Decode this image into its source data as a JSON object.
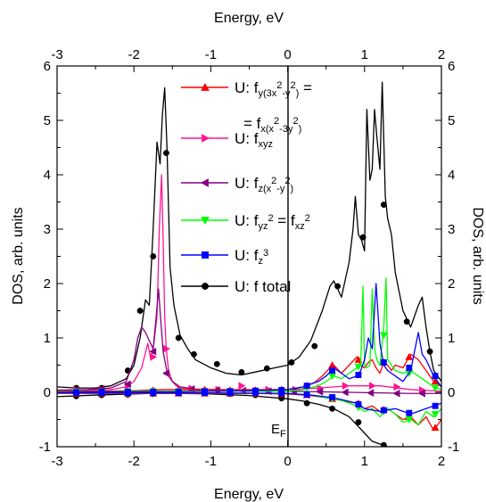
{
  "chart_data": {
    "type": "line",
    "xlabel": "Energy, eV",
    "x2label": "Energy, eV",
    "ylabel": "DOS, arb. units",
    "y2label": "DOS, arb. units",
    "xlim": [
      -3,
      2
    ],
    "ylim": [
      -1,
      6
    ],
    "xticks": [
      "-3",
      "-2",
      "-1",
      "0",
      "1",
      "2"
    ],
    "yticks": [
      "-1",
      "0",
      "1",
      "2",
      "3",
      "4",
      "5",
      "6"
    ],
    "fermi_label": "E",
    "fermi_sub": "F",
    "legend": [
      {
        "color": "#ff0000",
        "marker": "triangle-up",
        "segments": [
          {
            "t": "U: f"
          },
          {
            "t": "y(3x",
            "s": "sub"
          },
          {
            "t": "2",
            "s": "sup"
          },
          {
            "t": "-y",
            "s": "sub"
          },
          {
            "t": "2",
            "s": "sup"
          },
          {
            "t": ")",
            "s": "sub"
          },
          {
            "t": " ="
          }
        ],
        "line2": [
          {
            "t": "= f"
          },
          {
            "t": "x(x",
            "s": "sub"
          },
          {
            "t": "2",
            "s": "sup"
          },
          {
            "t": "-3y",
            "s": "sub"
          },
          {
            "t": "2",
            "s": "sup"
          },
          {
            "t": ")",
            "s": "sub"
          }
        ]
      },
      {
        "color": "#ff1493",
        "marker": "triangle-right",
        "segments": [
          {
            "t": "U: f"
          },
          {
            "t": "xyz",
            "s": "sub"
          }
        ]
      },
      {
        "color": "#800080",
        "marker": "triangle-left",
        "segments": [
          {
            "t": "U: f"
          },
          {
            "t": "z(x",
            "s": "sub"
          },
          {
            "t": "2",
            "s": "sup"
          },
          {
            "t": "-y",
            "s": "sub"
          },
          {
            "t": "2",
            "s": "sup"
          },
          {
            "t": ")",
            "s": "sub"
          }
        ]
      },
      {
        "color": "#00ff00",
        "marker": "triangle-down",
        "segments": [
          {
            "t": "U: f"
          },
          {
            "t": "yz",
            "s": "sub"
          },
          {
            "t": "2",
            "s": "sup"
          },
          {
            "t": " = f"
          },
          {
            "t": "xz",
            "s": "sub"
          },
          {
            "t": "2",
            "s": "sup"
          }
        ]
      },
      {
        "color": "#0000ff",
        "marker": "square",
        "segments": [
          {
            "t": "U: f"
          },
          {
            "t": "z",
            "s": "sub"
          },
          {
            "t": "3",
            "s": "sup"
          }
        ]
      },
      {
        "color": "#000000",
        "marker": "circle",
        "segments": [
          {
            "t": "U: f total"
          }
        ]
      }
    ],
    "series": [
      {
        "color": "#000000",
        "marker": "circle",
        "x": [
          -3.0,
          -2.75,
          -2.5,
          -2.3,
          -2.1,
          -2.0,
          -1.92,
          -1.85,
          -1.8,
          -1.75,
          -1.7,
          -1.66,
          -1.63,
          -1.6,
          -1.57,
          -1.53,
          -1.48,
          -1.4,
          -1.3,
          -1.2,
          -1.0,
          -0.8,
          -0.6,
          -0.4,
          -0.2,
          0.0,
          0.15,
          0.3,
          0.45,
          0.55,
          0.6,
          0.65,
          0.7,
          0.8,
          0.85,
          0.88,
          0.92,
          0.96,
          1.0,
          1.03,
          1.07,
          1.1,
          1.13,
          1.16,
          1.2,
          1.23,
          1.27,
          1.3,
          1.35,
          1.4,
          1.5,
          1.6,
          1.7,
          1.75,
          1.8,
          1.85,
          1.9,
          2.0
        ],
        "y": [
          0.1,
          0.08,
          0.08,
          0.12,
          0.25,
          0.5,
          1.0,
          1.7,
          1.6,
          3.0,
          4.6,
          4.2,
          5.1,
          5.6,
          4.5,
          2.3,
          1.6,
          1.05,
          0.8,
          0.6,
          0.45,
          0.35,
          0.32,
          0.38,
          0.44,
          0.5,
          0.65,
          0.95,
          1.5,
          1.95,
          2.05,
          1.9,
          1.75,
          2.4,
          3.0,
          3.6,
          2.9,
          2.8,
          2.6,
          5.2,
          3.9,
          4.1,
          5.2,
          4.7,
          4.1,
          5.7,
          3.6,
          3.2,
          2.9,
          2.2,
          1.5,
          1.2,
          1.6,
          1.75,
          1.2,
          0.75,
          0.4,
          0.2
        ],
        "mx": [
          -2.75,
          -2.42,
          -2.08,
          -1.92,
          -1.75,
          -1.58,
          -1.42,
          -1.22,
          -0.92,
          -0.6,
          -0.27,
          0.05,
          0.35,
          0.65,
          0.98,
          1.25,
          1.55,
          1.85
        ],
        "my": [
          0.08,
          0.08,
          0.4,
          1.5,
          2.5,
          4.4,
          1.0,
          0.7,
          0.52,
          0.37,
          0.44,
          0.55,
          0.85,
          1.95,
          2.85,
          3.45,
          1.3,
          0.75
        ]
      },
      {
        "color": "#000000",
        "marker": "circle",
        "x": [
          -3.0,
          -2.5,
          -2.0,
          -1.8,
          -1.6,
          -1.4,
          -1.0,
          -0.5,
          0.0,
          0.2,
          0.4,
          0.6,
          0.8,
          0.9,
          1.0,
          1.1,
          1.2,
          1.3,
          1.4,
          1.5,
          1.6,
          1.7,
          1.8,
          2.0
        ],
        "y": [
          -0.08,
          -0.05,
          -0.03,
          -0.02,
          -0.02,
          -0.02,
          -0.03,
          -0.06,
          -0.12,
          -0.16,
          -0.22,
          -0.3,
          -0.45,
          -0.6,
          -0.75,
          -0.9,
          -0.95,
          -1.0,
          -1.0,
          -1.0,
          -1.0,
          -1.0,
          -1.0,
          -1.0
        ],
        "mx": [
          -2.75,
          -2.42,
          -2.08,
          -1.75,
          -1.42,
          -1.08,
          -0.75,
          -0.42,
          -0.08,
          0.25,
          0.58,
          0.92,
          1.25
        ],
        "my": [
          -0.07,
          -0.05,
          -0.04,
          -0.03,
          -0.02,
          -0.02,
          -0.03,
          -0.05,
          -0.11,
          -0.2,
          -0.3,
          -0.55,
          -0.97
        ]
      },
      {
        "color": "#ff1493",
        "marker": "triangle-right",
        "x": [
          -3.0,
          -2.6,
          -2.3,
          -2.1,
          -2.0,
          -1.9,
          -1.82,
          -1.78,
          -1.74,
          -1.7,
          -1.67,
          -1.64,
          -1.62,
          -1.6,
          -1.58,
          -1.55,
          -1.5,
          -1.45,
          -1.4,
          -1.2,
          -0.8,
          -0.4,
          0.0,
          0.4,
          0.8,
          1.2,
          1.6,
          2.0
        ],
        "y": [
          0.03,
          0.04,
          0.05,
          0.1,
          0.2,
          0.45,
          0.9,
          0.6,
          0.9,
          1.4,
          3.0,
          4.0,
          2.8,
          1.4,
          0.8,
          0.4,
          0.2,
          0.12,
          0.08,
          0.06,
          0.05,
          0.05,
          0.05,
          0.08,
          0.12,
          0.12,
          0.05,
          0.02
        ],
        "mx": [
          -2.75,
          -2.42,
          -2.08,
          -1.75,
          -1.58,
          -1.25,
          -0.9,
          -0.6,
          -0.25,
          0.1,
          0.42,
          0.75,
          1.1,
          1.42,
          1.75
        ],
        "my": [
          0.04,
          0.04,
          0.12,
          0.65,
          0.8,
          0.07,
          0.05,
          0.12,
          0.05,
          0.05,
          0.08,
          0.12,
          0.12,
          0.1,
          0.04
        ]
      },
      {
        "color": "#800080",
        "marker": "triangle-left",
        "x": [
          -3.0,
          -2.6,
          -2.3,
          -2.1,
          -2.0,
          -1.95,
          -1.9,
          -1.85,
          -1.8,
          -1.75,
          -1.71,
          -1.68,
          -1.65,
          -1.62,
          -1.58,
          -1.55,
          -1.5,
          -1.4,
          -1.2,
          -0.8,
          -0.4,
          0.0,
          0.4,
          0.8,
          1.2,
          1.6,
          2.0
        ],
        "y": [
          0.04,
          0.05,
          0.08,
          0.2,
          0.6,
          1.0,
          1.2,
          1.1,
          0.95,
          0.8,
          1.4,
          1.9,
          1.3,
          0.75,
          0.45,
          0.3,
          0.2,
          0.1,
          0.06,
          0.03,
          0.02,
          0.02,
          0.01,
          0.0,
          -0.01,
          -0.02,
          -0.02
        ],
        "mx": [
          -2.75,
          -2.42,
          -2.08,
          -1.75,
          -1.58,
          -1.25,
          -0.92,
          -0.58,
          -0.25,
          0.08,
          0.42,
          0.75,
          1.08,
          1.42,
          1.75
        ],
        "my": [
          0.04,
          0.06,
          0.15,
          0.75,
          0.35,
          0.06,
          0.04,
          0.03,
          0.02,
          0.02,
          0.01,
          0.0,
          -0.01,
          -0.02,
          -0.02
        ]
      },
      {
        "color": "#ff0000",
        "marker": "triangle-up",
        "x": [
          -3.0,
          -2.5,
          -2.0,
          -1.8,
          -1.6,
          -1.4,
          -1.0,
          -0.5,
          0.0,
          0.2,
          0.35,
          0.45,
          0.55,
          0.6,
          0.7,
          0.8,
          0.9,
          0.95,
          1.0,
          1.05,
          1.1,
          1.15,
          1.2,
          1.25,
          1.3,
          1.35,
          1.4,
          1.5,
          1.6,
          1.7,
          1.8,
          1.9,
          2.0
        ],
        "y": [
          0.02,
          0.02,
          0.03,
          0.04,
          0.05,
          0.05,
          0.04,
          0.04,
          0.05,
          0.1,
          0.18,
          0.3,
          0.45,
          0.5,
          0.35,
          0.5,
          0.65,
          0.5,
          0.45,
          0.55,
          0.6,
          0.45,
          0.35,
          0.55,
          0.5,
          0.4,
          0.5,
          0.45,
          0.7,
          0.6,
          0.4,
          0.2,
          0.1
        ],
        "mx": [
          -2.75,
          -2.42,
          -2.08,
          -1.75,
          -1.42,
          -1.08,
          -0.75,
          -0.42,
          -0.08,
          0.25,
          0.58,
          0.92,
          1.25,
          1.58,
          1.92
        ],
        "my": [
          0.02,
          0.02,
          0.03,
          0.04,
          0.05,
          0.05,
          0.04,
          0.04,
          0.05,
          0.12,
          0.5,
          0.6,
          0.55,
          0.65,
          0.2
        ]
      },
      {
        "color": "#ff0000",
        "marker": "triangle-up",
        "x": [
          -3.0,
          -2.5,
          -2.0,
          -1.5,
          -1.0,
          -0.5,
          0.0,
          0.3,
          0.5,
          0.7,
          0.9,
          1.0,
          1.1,
          1.2,
          1.3,
          1.4,
          1.5,
          1.6,
          1.7,
          1.8,
          1.9,
          2.0
        ],
        "y": [
          -0.02,
          -0.02,
          -0.02,
          -0.02,
          -0.02,
          -0.02,
          -0.03,
          -0.06,
          -0.1,
          -0.15,
          -0.2,
          -0.3,
          -0.25,
          -0.35,
          -0.3,
          -0.4,
          -0.5,
          -0.45,
          -0.6,
          -0.45,
          -0.7,
          -0.5
        ],
        "mx": [
          -2.75,
          -2.42,
          -2.08,
          -1.75,
          -1.42,
          -1.08,
          -0.75,
          -0.42,
          -0.08,
          0.25,
          0.58,
          0.92,
          1.25,
          1.58,
          1.92
        ],
        "my": [
          -0.02,
          -0.02,
          -0.02,
          -0.02,
          -0.02,
          -0.02,
          -0.02,
          -0.02,
          -0.03,
          -0.05,
          -0.12,
          -0.2,
          -0.32,
          -0.45,
          -0.65
        ]
      },
      {
        "color": "#00ff00",
        "marker": "triangle-down",
        "x": [
          -3.0,
          -2.5,
          -2.0,
          -1.5,
          -1.0,
          -0.5,
          0.0,
          0.2,
          0.4,
          0.5,
          0.55,
          0.6,
          0.7,
          0.8,
          0.9,
          0.95,
          0.98,
          1.0,
          1.03,
          1.07,
          1.1,
          1.13,
          1.16,
          1.2,
          1.25,
          1.28,
          1.3,
          1.35,
          1.4,
          1.5,
          1.6,
          1.7,
          1.8,
          1.9,
          2.0
        ],
        "y": [
          0.01,
          0.01,
          0.02,
          0.02,
          0.02,
          0.02,
          0.02,
          0.05,
          0.12,
          0.2,
          0.25,
          0.3,
          0.25,
          0.35,
          0.45,
          0.5,
          1.95,
          0.5,
          0.45,
          0.5,
          1.9,
          0.8,
          0.6,
          0.5,
          1.2,
          2.1,
          0.6,
          0.5,
          0.4,
          0.35,
          0.4,
          0.3,
          0.2,
          0.1,
          0.05
        ],
        "mx": [
          -2.75,
          -2.42,
          -2.08,
          -1.75,
          -1.42,
          -1.08,
          -0.75,
          -0.42,
          -0.08,
          0.25,
          0.58,
          0.92,
          1.25,
          1.58,
          1.92
        ],
        "my": [
          0.01,
          0.01,
          0.02,
          0.02,
          0.02,
          0.02,
          0.02,
          0.02,
          0.02,
          0.08,
          0.3,
          0.47,
          1.05,
          0.35,
          0.08
        ]
      },
      {
        "color": "#00ff00",
        "marker": "triangle-down",
        "x": [
          -3.0,
          -2.0,
          -1.0,
          0.0,
          0.3,
          0.5,
          0.7,
          0.9,
          1.0,
          1.1,
          1.2,
          1.3,
          1.4,
          1.5,
          1.6,
          1.7,
          1.8,
          1.9,
          2.0
        ],
        "y": [
          -0.01,
          -0.01,
          -0.01,
          -0.02,
          -0.05,
          -0.1,
          -0.15,
          -0.25,
          -0.35,
          -0.3,
          -0.45,
          -0.3,
          -0.4,
          -0.55,
          -0.5,
          -0.6,
          -0.35,
          -0.45,
          -0.3
        ],
        "mx": [
          -2.75,
          -2.42,
          -2.08,
          -1.75,
          -1.42,
          -1.08,
          -0.75,
          -0.42,
          -0.08,
          0.25,
          0.58,
          0.92,
          1.25,
          1.58,
          1.92
        ],
        "my": [
          -0.01,
          -0.01,
          -0.01,
          -0.01,
          -0.01,
          -0.01,
          -0.01,
          -0.01,
          -0.02,
          -0.04,
          -0.12,
          -0.28,
          -0.35,
          -0.5,
          -0.4
        ]
      },
      {
        "color": "#0000ff",
        "marker": "square",
        "x": [
          -3.0,
          -2.5,
          -2.0,
          -1.5,
          -1.0,
          -0.5,
          0.0,
          0.2,
          0.4,
          0.5,
          0.6,
          0.7,
          0.8,
          0.9,
          0.95,
          1.0,
          1.05,
          1.1,
          1.15,
          1.2,
          1.25,
          1.3,
          1.35,
          1.4,
          1.5,
          1.6,
          1.7,
          1.75,
          1.8,
          1.9,
          2.0
        ],
        "y": [
          0.0,
          0.01,
          0.01,
          0.01,
          0.02,
          0.03,
          0.05,
          0.1,
          0.2,
          0.3,
          0.45,
          0.35,
          0.25,
          0.3,
          0.4,
          0.6,
          1.0,
          0.8,
          2.0,
          0.9,
          0.5,
          0.4,
          0.35,
          0.3,
          0.2,
          0.4,
          1.1,
          0.7,
          0.6,
          0.3,
          0.1
        ],
        "mx": [
          -2.75,
          -2.42,
          -2.08,
          -1.75,
          -1.42,
          -1.08,
          -0.75,
          -0.42,
          -0.08,
          0.25,
          0.58,
          0.92,
          1.25,
          1.58,
          1.92
        ],
        "my": [
          0.0,
          0.01,
          0.01,
          0.01,
          0.01,
          0.02,
          0.02,
          0.03,
          0.04,
          0.12,
          0.4,
          0.32,
          0.55,
          0.45,
          0.3
        ]
      },
      {
        "color": "#0000ff",
        "marker": "square",
        "x": [
          -3.0,
          -2.0,
          -1.0,
          0.0,
          0.3,
          0.6,
          0.9,
          1.0,
          1.2,
          1.4,
          1.6,
          1.8,
          2.0
        ],
        "y": [
          -0.01,
          -0.01,
          -0.01,
          -0.02,
          -0.05,
          -0.1,
          -0.2,
          -0.3,
          -0.35,
          -0.3,
          -0.4,
          -0.3,
          -0.2
        ],
        "mx": [
          -2.75,
          -2.42,
          -2.08,
          -1.75,
          -1.42,
          -1.08,
          -0.75,
          -0.42,
          -0.08,
          0.25,
          0.58,
          0.92,
          1.25,
          1.58,
          1.92
        ],
        "my": [
          -0.01,
          -0.01,
          -0.01,
          -0.01,
          -0.01,
          -0.01,
          -0.01,
          -0.01,
          -0.02,
          -0.04,
          -0.09,
          -0.22,
          -0.33,
          -0.38,
          -0.25
        ]
      }
    ]
  }
}
